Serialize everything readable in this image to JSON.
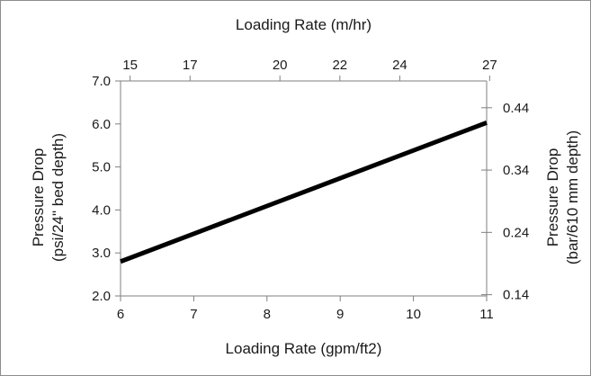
{
  "chart_data": {
    "type": "line",
    "title": "",
    "xlabel": "Loading Rate (gpm/ft2)",
    "ylabel": "Pressure Drop (psi/24\" bed depth)",
    "ylabel_lines": [
      "Pressure Drop",
      "(psi/24\" bed depth)"
    ],
    "x2label": "Loading Rate (m/hr)",
    "y2label": "Pressure Drop (bar/610 mm depth)",
    "y2label_lines": [
      "Pressure Drop",
      "(bar/610 mm depth)"
    ],
    "xlim": [
      6,
      11
    ],
    "ylim": [
      2.0,
      7.0
    ],
    "x2lim": [
      14.68,
      26.9
    ],
    "y2lim": [
      0.138,
      0.483
    ],
    "x_ticks": [
      "6",
      "7",
      "8",
      "9",
      "10",
      "11"
    ],
    "y_ticks": [
      "2.0",
      "3.0",
      "4.0",
      "5.0",
      "6.0",
      "7.0"
    ],
    "x2_ticks": [
      "15",
      "17",
      "20",
      "22",
      "24",
      "27"
    ],
    "y2_ticks": [
      "0.14",
      "0.24",
      "0.34",
      "0.44"
    ],
    "grid": false,
    "legend": "none",
    "series": [
      {
        "x": [
          6,
          11
        ],
        "y": [
          2.8,
          6.03
        ]
      }
    ],
    "colors": {
      "line": "#000000",
      "axis": "#7f7f7f"
    }
  }
}
